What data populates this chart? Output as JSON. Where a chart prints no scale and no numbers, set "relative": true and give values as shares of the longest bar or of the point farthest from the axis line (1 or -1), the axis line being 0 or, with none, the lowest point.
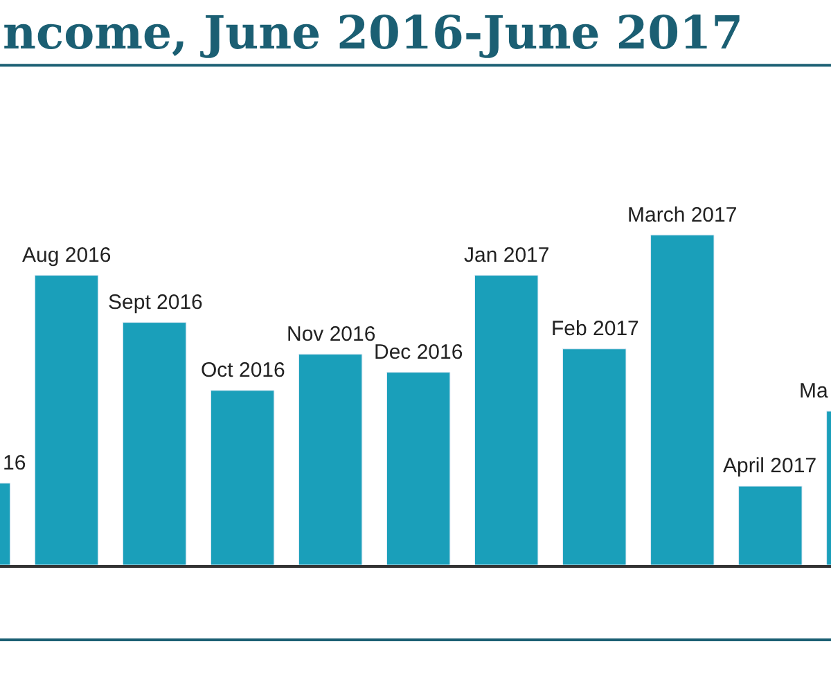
{
  "chart_data": {
    "type": "bar",
    "title": "ncome, June 2016-June 2017",
    "relative": true,
    "categories": [
      "16",
      "Aug 2016",
      "Sept 2016",
      "Oct 2016",
      "Nov 2016",
      "Dec 2016",
      "Jan 2017",
      "Feb 2017",
      "March 2017",
      "April 2017",
      "Ma"
    ],
    "values": [
      0.248,
      0.878,
      0.735,
      0.529,
      0.639,
      0.584,
      0.878,
      0.655,
      1.0,
      0.239,
      0.466
    ],
    "color": "#1a9fba",
    "legend": false
  }
}
